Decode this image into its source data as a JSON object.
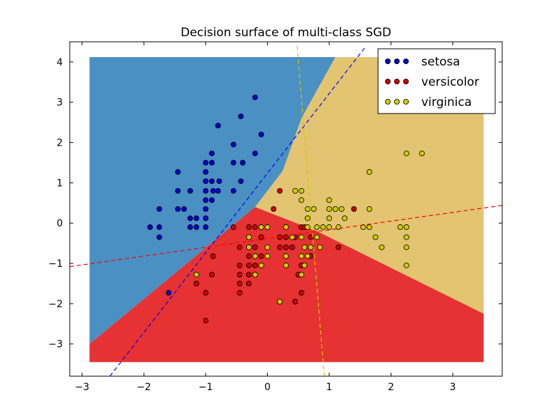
{
  "chart_data": {
    "type": "scatter",
    "title": "Decision surface of multi-class SGD",
    "xlabel": "",
    "ylabel": "",
    "xlim": [
      -3.2,
      3.8
    ],
    "ylim": [
      -3.8,
      4.5
    ],
    "xticks": [
      -3,
      -2,
      -1,
      0,
      1,
      2,
      3
    ],
    "yticks": [
      -3,
      -2,
      -1,
      0,
      1,
      2,
      3,
      4
    ],
    "grid": false,
    "legend_position": "top-right",
    "region_extent": {
      "x": [
        -2.88,
        3.5
      ],
      "y": [
        -3.45,
        4.12
      ]
    },
    "regions": [
      {
        "name": "setosa",
        "color": "#4a90c2",
        "polygon": [
          [
            -2.88,
            4.12
          ],
          [
            1.1,
            4.12
          ],
          [
            0.55,
            2.6
          ],
          [
            0.25,
            1.3
          ],
          [
            -0.2,
            0.4
          ],
          [
            -2.88,
            -3.0
          ]
        ]
      },
      {
        "name": "virginica",
        "color": "#e3c470",
        "polygon": [
          [
            1.1,
            4.12
          ],
          [
            3.5,
            4.12
          ],
          [
            3.5,
            -2.25
          ],
          [
            0.8,
            -0.2
          ],
          [
            -0.2,
            0.4
          ],
          [
            0.25,
            1.3
          ],
          [
            0.55,
            2.6
          ]
        ]
      },
      {
        "name": "versicolor",
        "color": "#e63232",
        "polygon": [
          [
            -2.88,
            -3.0
          ],
          [
            -0.2,
            0.4
          ],
          [
            0.8,
            -0.2
          ],
          [
            3.5,
            -2.25
          ],
          [
            3.5,
            -3.45
          ],
          [
            -2.88,
            -3.45
          ]
        ]
      }
    ],
    "series": [
      {
        "name": "setosa",
        "color": "#0000cc",
        "line_color": "#0000ff",
        "points": [
          [
            -0.2,
            3.12
          ],
          [
            -0.43,
            2.65
          ],
          [
            -0.1,
            2.2
          ],
          [
            -0.8,
            2.42
          ],
          [
            -0.55,
            1.95
          ],
          [
            -0.4,
            1.5
          ],
          [
            -0.2,
            1.73
          ],
          [
            -0.9,
            1.73
          ],
          [
            -1.0,
            1.5
          ],
          [
            -0.9,
            1.5
          ],
          [
            -0.55,
            1.5
          ],
          [
            -1.45,
            1.27
          ],
          [
            -1.0,
            1.27
          ],
          [
            -1.0,
            1.04
          ],
          [
            -0.9,
            1.04
          ],
          [
            -0.78,
            1.04
          ],
          [
            -1.45,
            0.8
          ],
          [
            -1.25,
            0.8
          ],
          [
            -1.0,
            0.8
          ],
          [
            -0.88,
            0.8
          ],
          [
            -0.8,
            0.8
          ],
          [
            -0.55,
            0.8
          ],
          [
            -0.43,
            1.04
          ],
          [
            -1.75,
            0.35
          ],
          [
            -1.45,
            0.35
          ],
          [
            -1.35,
            0.35
          ],
          [
            -1.0,
            0.57
          ],
          [
            -1.0,
            0.35
          ],
          [
            -0.9,
            0.57
          ],
          [
            -1.25,
            0.12
          ],
          [
            -1.15,
            0.12
          ],
          [
            -1.0,
            0.12
          ],
          [
            -1.9,
            -0.1
          ],
          [
            -1.75,
            -0.1
          ],
          [
            -1.25,
            -0.1
          ],
          [
            -1.15,
            -0.1
          ],
          [
            -1.0,
            -0.1
          ],
          [
            -1.75,
            -0.35
          ],
          [
            -1.6,
            -1.73
          ]
        ],
        "boundary": [
          [
            -2.55,
            -3.8
          ],
          [
            1.6,
            4.4
          ]
        ]
      },
      {
        "name": "versicolor",
        "color": "#cc0000",
        "line_color": "#ff0000",
        "points": [
          [
            0.2,
            0.8
          ],
          [
            0.1,
            0.35
          ],
          [
            1.4,
            0.35
          ],
          [
            -0.55,
            -0.1
          ],
          [
            -0.3,
            -0.1
          ],
          [
            -0.3,
            -0.35
          ],
          [
            -0.2,
            -0.1
          ],
          [
            -0.1,
            -0.35
          ],
          [
            -0.1,
            -0.1
          ],
          [
            0.2,
            -0.35
          ],
          [
            0.3,
            -0.35
          ],
          [
            0.3,
            -0.6
          ],
          [
            0.2,
            -0.6
          ],
          [
            0.4,
            -0.6
          ],
          [
            0.45,
            -0.35
          ],
          [
            0.55,
            -0.1
          ],
          [
            0.6,
            -0.1
          ],
          [
            0.7,
            -0.35
          ],
          [
            1.15,
            -0.6
          ],
          [
            -0.2,
            -0.6
          ],
          [
            -0.3,
            -0.6
          ],
          [
            -0.45,
            -0.6
          ],
          [
            -0.2,
            -0.82
          ],
          [
            -0.3,
            -0.82
          ],
          [
            -0.1,
            -0.82
          ],
          [
            -0.45,
            -1.05
          ],
          [
            -0.3,
            -1.05
          ],
          [
            -0.2,
            -1.05
          ],
          [
            -0.1,
            -1.05
          ],
          [
            -0.45,
            -1.28
          ],
          [
            -0.3,
            -1.28
          ],
          [
            -0.2,
            -1.28
          ],
          [
            -0.45,
            -1.5
          ],
          [
            -0.3,
            -1.5
          ],
          [
            -0.45,
            -1.73
          ],
          [
            -0.88,
            -0.82
          ],
          [
            -0.9,
            -1.28
          ],
          [
            -1.15,
            -1.5
          ],
          [
            -1.0,
            -1.73
          ],
          [
            0.2,
            -1.95
          ],
          [
            0.45,
            -1.95
          ],
          [
            0.55,
            -1.73
          ],
          [
            -1.0,
            -2.42
          ],
          [
            0.55,
            -1.05
          ],
          [
            0.7,
            -0.82
          ],
          [
            0.5,
            -1.28
          ]
        ],
        "boundary": [
          [
            -3.2,
            -1.08
          ],
          [
            3.8,
            0.44
          ]
        ]
      },
      {
        "name": "virginica",
        "color": "#cccc00",
        "line_color": "#cccc00",
        "points": [
          [
            0.45,
            0.8
          ],
          [
            0.55,
            0.8
          ],
          [
            0.55,
            0.57
          ],
          [
            0.65,
            0.35
          ],
          [
            0.65,
            0.12
          ],
          [
            0.75,
            0.35
          ],
          [
            1.0,
            0.57
          ],
          [
            1.0,
            0.35
          ],
          [
            1.0,
            0.12
          ],
          [
            1.1,
            0.35
          ],
          [
            1.2,
            0.35
          ],
          [
            1.25,
            0.12
          ],
          [
            1.65,
            1.27
          ],
          [
            1.65,
            0.35
          ],
          [
            2.25,
            1.73
          ],
          [
            2.5,
            1.73
          ],
          [
            0.65,
            -0.1
          ],
          [
            0.8,
            -0.1
          ],
          [
            0.9,
            -0.1
          ],
          [
            1.0,
            -0.1
          ],
          [
            1.15,
            -0.1
          ],
          [
            1.55,
            -0.1
          ],
          [
            1.65,
            -0.1
          ],
          [
            2.15,
            -0.1
          ],
          [
            2.25,
            -0.1
          ],
          [
            -0.3,
            -0.35
          ],
          [
            -0.1,
            -0.1
          ],
          [
            0.0,
            -0.1
          ],
          [
            0.3,
            -0.1
          ],
          [
            0.4,
            -0.35
          ],
          [
            0.55,
            -0.35
          ],
          [
            0.6,
            -0.6
          ],
          [
            0.7,
            -0.6
          ],
          [
            0.8,
            -0.35
          ],
          [
            0.85,
            -0.6
          ],
          [
            1.75,
            -0.35
          ],
          [
            1.85,
            -0.6
          ],
          [
            2.25,
            -0.35
          ],
          [
            2.25,
            -0.6
          ],
          [
            -0.3,
            -0.6
          ],
          [
            -0.2,
            -0.82
          ],
          [
            0.0,
            -0.82
          ],
          [
            0.0,
            -0.6
          ],
          [
            0.3,
            -0.82
          ],
          [
            0.55,
            -0.82
          ],
          [
            0.65,
            -0.82
          ],
          [
            0.6,
            -1.05
          ],
          [
            0.3,
            -1.05
          ],
          [
            2.25,
            -1.05
          ],
          [
            -0.1,
            -1.05
          ],
          [
            -0.2,
            -1.28
          ],
          [
            0.55,
            -1.28
          ],
          [
            -1.15,
            -1.28
          ],
          [
            0.2,
            -1.95
          ]
        ],
        "boundary": [
          [
            0.48,
            4.4
          ],
          [
            0.92,
            -3.8
          ]
        ]
      }
    ]
  }
}
